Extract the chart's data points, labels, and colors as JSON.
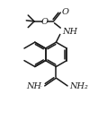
{
  "bg_color": "#ffffff",
  "bond_color": "#1a1a1a",
  "bond_width": 1.1,
  "text_color": "#1a1a1a",
  "font_size": 7.0,
  "dbl_sep": 1.8
}
